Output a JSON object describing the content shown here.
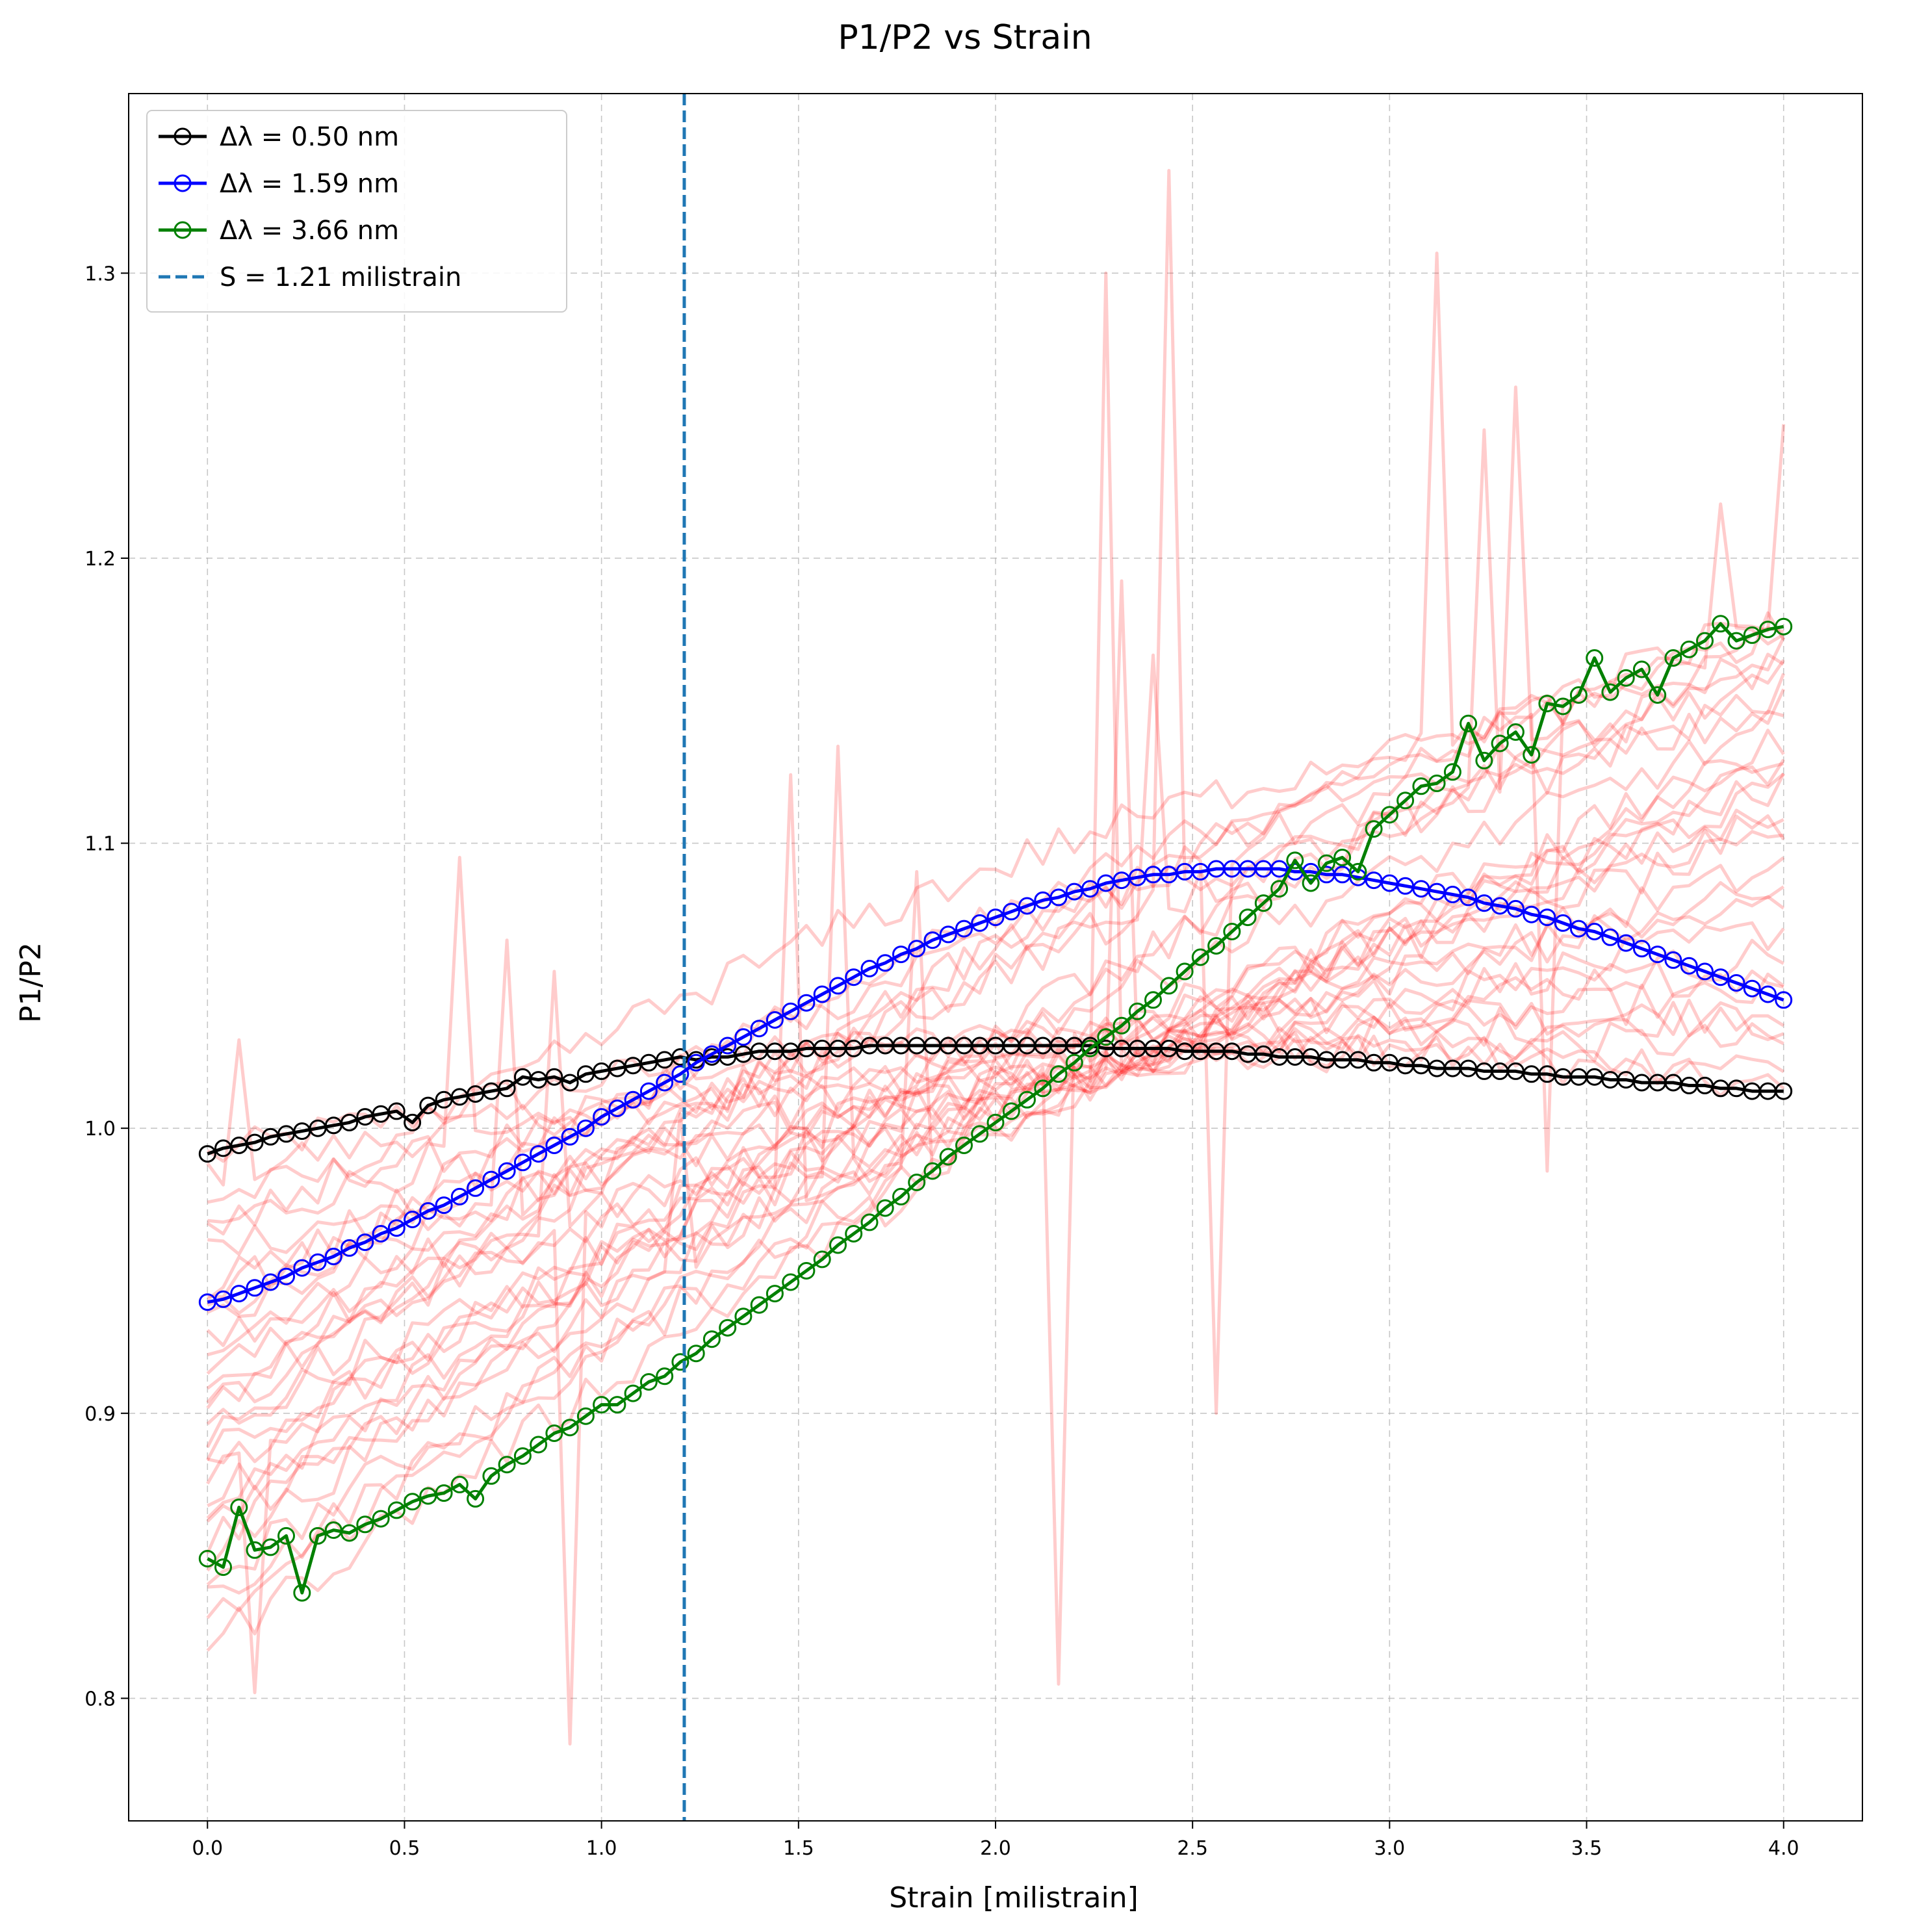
{
  "chart_data": {
    "type": "line",
    "title": "P1/P2 vs Strain",
    "xlabel": "Strain [milistrain]",
    "ylabel": "P1/P2",
    "xlim": [
      -0.2,
      4.2
    ],
    "ylim": [
      0.757,
      1.363
    ],
    "xticks": [
      "0.0",
      "0.5",
      "1.0",
      "1.5",
      "2.0",
      "2.5",
      "3.0",
      "3.5",
      "4.0"
    ],
    "yticks": [
      "0.8",
      "0.9",
      "1.0",
      "1.1",
      "1.2",
      "1.3"
    ],
    "grid": true,
    "legend_position": "upper-left",
    "series": [
      {
        "name": "Δλ = 0.50 nm",
        "color": "#000000",
        "marker": "open-circle",
        "x": [
          0.0,
          0.04,
          0.08,
          0.12,
          0.16,
          0.2,
          0.24,
          0.28,
          0.32,
          0.36,
          0.4,
          0.44,
          0.48,
          0.52,
          0.56,
          0.6,
          0.64,
          0.68,
          0.72,
          0.76,
          0.8,
          0.84,
          0.88,
          0.92,
          0.96,
          1.0,
          1.04,
          1.08,
          1.12,
          1.16,
          1.2,
          1.24,
          1.28,
          1.32,
          1.36,
          1.4,
          1.44,
          1.48,
          1.52,
          1.56,
          1.6,
          1.64,
          1.68,
          1.72,
          1.76,
          1.8,
          1.84,
          1.88,
          1.92,
          1.96,
          2.0,
          2.04,
          2.08,
          2.12,
          2.16,
          2.2,
          2.24,
          2.28,
          2.32,
          2.36,
          2.4,
          2.44,
          2.48,
          2.52,
          2.56,
          2.6,
          2.64,
          2.68,
          2.72,
          2.76,
          2.8,
          2.84,
          2.88,
          2.92,
          2.96,
          3.0,
          3.04,
          3.08,
          3.12,
          3.16,
          3.2,
          3.24,
          3.28,
          3.32,
          3.36,
          3.4,
          3.44,
          3.48,
          3.52,
          3.56,
          3.6,
          3.64,
          3.68,
          3.72,
          3.76,
          3.8,
          3.84,
          3.88,
          3.92,
          3.96,
          4.0
        ],
        "y": [
          0.991,
          0.993,
          0.994,
          0.995,
          0.997,
          0.998,
          0.999,
          1.0,
          1.001,
          1.002,
          1.004,
          1.005,
          1.006,
          1.002,
          1.008,
          1.01,
          1.011,
          1.012,
          1.013,
          1.014,
          1.018,
          1.017,
          1.018,
          1.016,
          1.019,
          1.02,
          1.021,
          1.022,
          1.023,
          1.024,
          1.025,
          1.024,
          1.025,
          1.025,
          1.026,
          1.027,
          1.027,
          1.027,
          1.028,
          1.028,
          1.028,
          1.028,
          1.029,
          1.029,
          1.029,
          1.029,
          1.029,
          1.029,
          1.029,
          1.029,
          1.029,
          1.029,
          1.029,
          1.029,
          1.029,
          1.029,
          1.029,
          1.028,
          1.028,
          1.028,
          1.028,
          1.028,
          1.027,
          1.027,
          1.027,
          1.027,
          1.026,
          1.026,
          1.025,
          1.025,
          1.025,
          1.024,
          1.024,
          1.024,
          1.023,
          1.023,
          1.022,
          1.022,
          1.021,
          1.021,
          1.021,
          1.02,
          1.02,
          1.02,
          1.019,
          1.019,
          1.018,
          1.018,
          1.018,
          1.017,
          1.017,
          1.016,
          1.016,
          1.016,
          1.015,
          1.015,
          1.014,
          1.014,
          1.013,
          1.013,
          1.013
        ]
      },
      {
        "name": "Δλ = 1.59 nm",
        "color": "#0000ff",
        "marker": "open-circle",
        "x": [
          0.0,
          0.04,
          0.08,
          0.12,
          0.16,
          0.2,
          0.24,
          0.28,
          0.32,
          0.36,
          0.4,
          0.44,
          0.48,
          0.52,
          0.56,
          0.6,
          0.64,
          0.68,
          0.72,
          0.76,
          0.8,
          0.84,
          0.88,
          0.92,
          0.96,
          1.0,
          1.04,
          1.08,
          1.12,
          1.16,
          1.2,
          1.24,
          1.28,
          1.32,
          1.36,
          1.4,
          1.44,
          1.48,
          1.52,
          1.56,
          1.6,
          1.64,
          1.68,
          1.72,
          1.76,
          1.8,
          1.84,
          1.88,
          1.92,
          1.96,
          2.0,
          2.04,
          2.08,
          2.12,
          2.16,
          2.2,
          2.24,
          2.28,
          2.32,
          2.36,
          2.4,
          2.44,
          2.48,
          2.52,
          2.56,
          2.6,
          2.64,
          2.68,
          2.72,
          2.76,
          2.8,
          2.84,
          2.88,
          2.92,
          2.96,
          3.0,
          3.04,
          3.08,
          3.12,
          3.16,
          3.2,
          3.24,
          3.28,
          3.32,
          3.36,
          3.4,
          3.44,
          3.48,
          3.52,
          3.56,
          3.6,
          3.64,
          3.68,
          3.72,
          3.76,
          3.8,
          3.84,
          3.88,
          3.92,
          3.96,
          4.0
        ],
        "y": [
          0.939,
          0.94,
          0.942,
          0.944,
          0.946,
          0.948,
          0.951,
          0.953,
          0.955,
          0.958,
          0.96,
          0.963,
          0.965,
          0.968,
          0.971,
          0.973,
          0.976,
          0.979,
          0.982,
          0.985,
          0.988,
          0.991,
          0.994,
          0.997,
          1.0,
          1.004,
          1.007,
          1.01,
          1.013,
          1.016,
          1.019,
          1.023,
          1.026,
          1.029,
          1.032,
          1.035,
          1.038,
          1.041,
          1.044,
          1.047,
          1.05,
          1.053,
          1.056,
          1.058,
          1.061,
          1.063,
          1.066,
          1.068,
          1.07,
          1.072,
          1.074,
          1.076,
          1.078,
          1.08,
          1.081,
          1.083,
          1.084,
          1.086,
          1.087,
          1.088,
          1.089,
          1.089,
          1.09,
          1.09,
          1.091,
          1.091,
          1.091,
          1.091,
          1.091,
          1.09,
          1.09,
          1.089,
          1.089,
          1.088,
          1.087,
          1.086,
          1.085,
          1.084,
          1.083,
          1.082,
          1.081,
          1.079,
          1.078,
          1.077,
          1.075,
          1.074,
          1.072,
          1.07,
          1.069,
          1.067,
          1.065,
          1.063,
          1.061,
          1.059,
          1.057,
          1.055,
          1.053,
          1.051,
          1.049,
          1.047,
          1.045
        ]
      },
      {
        "name": "Δλ = 3.66 nm",
        "color": "#008000",
        "marker": "open-circle",
        "x": [
          0.0,
          0.04,
          0.08,
          0.12,
          0.16,
          0.2,
          0.24,
          0.28,
          0.32,
          0.36,
          0.4,
          0.44,
          0.48,
          0.52,
          0.56,
          0.6,
          0.64,
          0.68,
          0.72,
          0.76,
          0.8,
          0.84,
          0.88,
          0.92,
          0.96,
          1.0,
          1.04,
          1.08,
          1.12,
          1.16,
          1.2,
          1.24,
          1.28,
          1.32,
          1.36,
          1.4,
          1.44,
          1.48,
          1.52,
          1.56,
          1.6,
          1.64,
          1.68,
          1.72,
          1.76,
          1.8,
          1.84,
          1.88,
          1.92,
          1.96,
          2.0,
          2.04,
          2.08,
          2.12,
          2.16,
          2.2,
          2.24,
          2.28,
          2.32,
          2.36,
          2.4,
          2.44,
          2.48,
          2.52,
          2.56,
          2.6,
          2.64,
          2.68,
          2.72,
          2.76,
          2.8,
          2.84,
          2.88,
          2.92,
          2.96,
          3.0,
          3.04,
          3.08,
          3.12,
          3.16,
          3.2,
          3.24,
          3.28,
          3.32,
          3.36,
          3.4,
          3.44,
          3.48,
          3.52,
          3.56,
          3.6,
          3.64,
          3.68,
          3.72,
          3.76,
          3.8,
          3.84,
          3.88,
          3.92,
          3.96,
          4.0
        ],
        "y": [
          0.849,
          0.846,
          0.867,
          0.852,
          0.853,
          0.857,
          0.837,
          0.857,
          0.859,
          0.858,
          0.861,
          0.863,
          0.866,
          0.869,
          0.871,
          0.872,
          0.875,
          0.87,
          0.878,
          0.882,
          0.885,
          0.889,
          0.893,
          0.895,
          0.899,
          0.903,
          0.903,
          0.907,
          0.911,
          0.913,
          0.918,
          0.921,
          0.926,
          0.93,
          0.934,
          0.938,
          0.942,
          0.946,
          0.95,
          0.954,
          0.959,
          0.963,
          0.967,
          0.972,
          0.976,
          0.981,
          0.985,
          0.99,
          0.994,
          0.998,
          1.002,
          1.006,
          1.01,
          1.014,
          1.019,
          1.023,
          1.028,
          1.032,
          1.036,
          1.041,
          1.045,
          1.05,
          1.055,
          1.06,
          1.064,
          1.069,
          1.074,
          1.079,
          1.084,
          1.094,
          1.086,
          1.093,
          1.095,
          1.09,
          1.105,
          1.11,
          1.115,
          1.12,
          1.121,
          1.125,
          1.142,
          1.129,
          1.135,
          1.139,
          1.131,
          1.149,
          1.148,
          1.152,
          1.165,
          1.153,
          1.158,
          1.161,
          1.152,
          1.165,
          1.168,
          1.171,
          1.177,
          1.171,
          1.173,
          1.175,
          1.176
        ]
      },
      {
        "name": "S = 1.21 milistrain",
        "color": "#1f77b4",
        "style": "dashed-vertical",
        "x": [
          1.21
        ]
      }
    ],
    "background_traces": {
      "color": "#ff0000",
      "opacity": 0.2,
      "count": 30,
      "start": [
        0.99,
        0.985,
        0.975,
        0.965,
        0.955,
        0.945,
        0.935,
        0.925,
        0.915,
        0.905,
        0.895,
        0.885,
        0.878,
        0.87,
        0.86,
        0.85,
        0.842,
        0.835,
        0.826,
        0.818,
        0.88,
        0.9,
        0.92,
        0.94,
        0.96,
        0.865,
        0.855,
        0.89,
        0.91,
        0.93
      ],
      "end": [
        1.013,
        1.022,
        1.03,
        1.037,
        1.042,
        1.048,
        1.055,
        1.062,
        1.07,
        1.078,
        1.085,
        1.092,
        1.1,
        1.108,
        1.113,
        1.118,
        1.122,
        1.127,
        1.132,
        1.137,
        1.142,
        1.148,
        1.153,
        1.158,
        1.163,
        1.167,
        1.172,
        1.176,
        1.178,
        1.18
      ],
      "spikes": [
        {
          "trace": 3,
          "x": 0.64,
          "y": 1.095
        },
        {
          "trace": 5,
          "x": 0.76,
          "y": 1.066
        },
        {
          "trace": 1,
          "x": 0.08,
          "y": 1.031
        },
        {
          "trace": 7,
          "x": 0.88,
          "y": 1.055
        },
        {
          "trace": 12,
          "x": 0.12,
          "y": 0.802
        },
        {
          "trace": 9,
          "x": 0.92,
          "y": 0.784
        },
        {
          "trace": 11,
          "x": 1.48,
          "y": 1.124
        },
        {
          "trace": 13,
          "x": 1.6,
          "y": 1.134
        },
        {
          "trace": 15,
          "x": 2.16,
          "y": 0.805
        },
        {
          "trace": 17,
          "x": 2.28,
          "y": 1.3
        },
        {
          "trace": 19,
          "x": 2.32,
          "y": 1.192
        },
        {
          "trace": 21,
          "x": 2.44,
          "y": 1.336
        },
        {
          "trace": 22,
          "x": 2.4,
          "y": 1.166
        },
        {
          "trace": 23,
          "x": 2.56,
          "y": 0.9
        },
        {
          "trace": 24,
          "x": 3.12,
          "y": 1.307
        },
        {
          "trace": 25,
          "x": 3.24,
          "y": 1.245
        },
        {
          "trace": 26,
          "x": 3.32,
          "y": 1.26
        },
        {
          "trace": 27,
          "x": 3.4,
          "y": 0.985
        },
        {
          "trace": 28,
          "x": 3.84,
          "y": 1.219
        },
        {
          "trace": 29,
          "x": 4.0,
          "y": 1.247
        },
        {
          "trace": 14,
          "x": 1.2,
          "y": 1.005
        },
        {
          "trace": 16,
          "x": 1.8,
          "y": 1.09
        }
      ]
    }
  }
}
